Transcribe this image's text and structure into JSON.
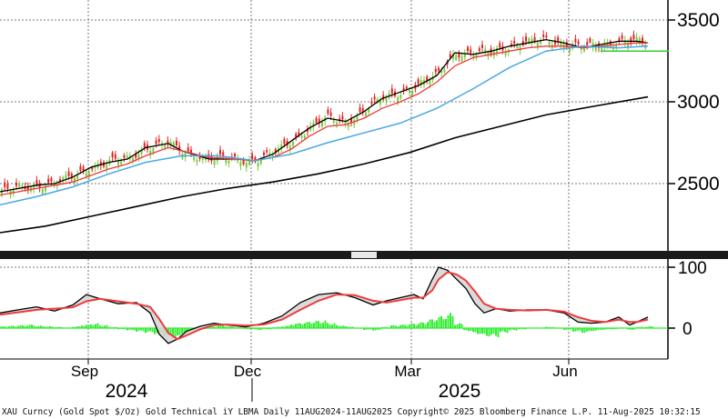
{
  "chart_data": [
    {
      "type": "line",
      "panel": "price",
      "title": "",
      "y_ticks": [
        "3500",
        "3000",
        "2500"
      ],
      "ylim": [
        2180,
        3560
      ],
      "grid": true,
      "colors": {
        "candle_up": "#7ac943",
        "candle_down": "#e02424",
        "ma_fast": "#000000",
        "ma_mid": "#ee3b3b",
        "ma_slow": "#4aa8e8",
        "ma_long": "#000000",
        "hline": "#33cc33"
      },
      "series": [
        {
          "key": "ma_fast",
          "x": [
            0,
            20,
            40,
            60,
            80,
            100,
            120,
            140,
            160,
            185,
            200,
            230,
            260,
            280,
            300,
            320,
            340,
            360,
            380,
            400,
            420,
            440,
            460,
            480,
            500,
            520,
            540,
            560,
            580,
            600,
            620,
            640,
            660,
            680,
            700,
            712
          ],
          "values": [
            2450,
            2470,
            2490,
            2500,
            2540,
            2600,
            2630,
            2650,
            2720,
            2745,
            2700,
            2650,
            2650,
            2640,
            2680,
            2760,
            2840,
            2900,
            2880,
            2940,
            3020,
            3060,
            3100,
            3160,
            3300,
            3290,
            3310,
            3340,
            3360,
            3380,
            3360,
            3330,
            3350,
            3370,
            3370,
            3360
          ]
        },
        {
          "key": "ma_mid",
          "x": [
            0,
            20,
            40,
            60,
            80,
            100,
            120,
            140,
            160,
            185,
            200,
            230,
            260,
            280,
            300,
            320,
            340,
            360,
            380,
            400,
            420,
            440,
            460,
            480,
            500,
            520,
            540,
            560,
            580,
            600,
            620,
            640,
            660,
            680,
            700,
            712
          ],
          "values": [
            2430,
            2450,
            2470,
            2490,
            2510,
            2550,
            2590,
            2620,
            2670,
            2720,
            2700,
            2660,
            2650,
            2640,
            2660,
            2710,
            2790,
            2850,
            2860,
            2900,
            2960,
            3000,
            3050,
            3120,
            3220,
            3270,
            3290,
            3310,
            3330,
            3340,
            3340,
            3330,
            3340,
            3350,
            3360,
            3360
          ]
        },
        {
          "key": "ma_slow",
          "x": [
            0,
            40,
            80,
            120,
            160,
            200,
            240,
            280,
            320,
            360,
            400,
            440,
            480,
            520,
            560,
            600,
            640,
            680,
            712
          ],
          "values": [
            2370,
            2420,
            2480,
            2560,
            2630,
            2670,
            2670,
            2640,
            2680,
            2750,
            2810,
            2870,
            2960,
            3080,
            3210,
            3310,
            3340,
            3330,
            3340
          ]
        },
        {
          "key": "ma_long",
          "x": [
            0,
            50,
            100,
            150,
            200,
            250,
            300,
            350,
            400,
            450,
            500,
            550,
            600,
            650,
            712
          ],
          "values": [
            2200,
            2240,
            2300,
            2360,
            2420,
            2470,
            2510,
            2560,
            2620,
            2690,
            2780,
            2850,
            2920,
            2970,
            3030
          ]
        }
      ],
      "hline": 3310,
      "hline_x": [
        660,
        735
      ]
    },
    {
      "type": "line",
      "panel": "oscillator",
      "y_ticks": [
        "100",
        "0"
      ],
      "ylim": [
        -30,
        110
      ],
      "colors": {
        "main": "#000000",
        "signal": "#ee3b3b",
        "fill": "#d7d7d7",
        "hist": "#33ee33"
      },
      "series": [
        {
          "key": "main",
          "x": [
            0,
            20,
            40,
            60,
            80,
            95,
            110,
            130,
            150,
            165,
            175,
            185,
            195,
            205,
            220,
            235,
            250,
            270,
            290,
            310,
            330,
            350,
            370,
            390,
            410,
            425,
            440,
            455,
            465,
            475,
            482,
            492,
            502,
            512,
            522,
            532,
            545,
            560,
            580,
            600,
            620,
            635,
            650,
            665,
            680,
            692,
            700,
            712
          ],
          "values": [
            25,
            30,
            35,
            28,
            38,
            55,
            48,
            40,
            42,
            25,
            -10,
            -25,
            -18,
            -5,
            3,
            8,
            5,
            2,
            8,
            20,
            42,
            55,
            58,
            50,
            38,
            45,
            50,
            55,
            48,
            80,
            100,
            95,
            80,
            65,
            40,
            25,
            32,
            28,
            30,
            30,
            25,
            10,
            8,
            10,
            18,
            5,
            10,
            18
          ]
        },
        {
          "key": "signal",
          "x": [
            0,
            20,
            40,
            60,
            80,
            95,
            110,
            130,
            150,
            165,
            175,
            185,
            195,
            205,
            220,
            235,
            250,
            270,
            290,
            310,
            330,
            350,
            370,
            390,
            410,
            425,
            440,
            455,
            465,
            475,
            482,
            492,
            502,
            512,
            522,
            532,
            545,
            560,
            580,
            600,
            620,
            635,
            650,
            665,
            680,
            692,
            700,
            712
          ],
          "values": [
            22,
            26,
            30,
            32,
            34,
            44,
            48,
            44,
            40,
            35,
            15,
            -8,
            -18,
            -12,
            -2,
            5,
            6,
            4,
            6,
            14,
            30,
            45,
            55,
            54,
            45,
            42,
            46,
            50,
            50,
            62,
            80,
            92,
            88,
            78,
            60,
            40,
            32,
            30,
            29,
            30,
            27,
            18,
            12,
            10,
            14,
            10,
            10,
            14
          ]
        }
      ],
      "histogram": {
        "x": [
          0,
          10,
          20,
          30,
          40,
          50,
          60,
          70,
          80,
          90,
          100,
          110,
          120,
          130,
          140,
          150,
          160,
          170,
          180,
          190,
          200,
          210,
          220,
          230,
          240,
          250,
          260,
          270,
          280,
          290,
          300,
          310,
          320,
          330,
          340,
          350,
          360,
          370,
          380,
          390,
          400,
          410,
          420,
          430,
          440,
          450,
          460,
          470,
          480,
          490,
          500,
          510,
          520,
          530,
          540,
          550,
          560,
          570,
          580,
          590,
          600,
          610,
          620,
          630,
          640,
          650,
          660,
          670,
          680,
          690,
          700,
          710
        ],
        "values": [
          3,
          4,
          5,
          6,
          4,
          3,
          2,
          1,
          3,
          6,
          8,
          5,
          2,
          -2,
          -4,
          -6,
          -8,
          -10,
          -15,
          -18,
          -10,
          -4,
          -2,
          3,
          5,
          3,
          1,
          -2,
          -3,
          -2,
          2,
          4,
          8,
          10,
          12,
          13,
          9,
          5,
          3,
          1,
          -3,
          -4,
          2,
          5,
          6,
          8,
          10,
          15,
          20,
          25,
          8,
          -5,
          -10,
          -14,
          -15,
          -8,
          -4,
          -2,
          0,
          1,
          2,
          0,
          -3,
          -6,
          -8,
          -5,
          -3,
          -2,
          1,
          -3,
          2,
          3
        ]
      },
      "hline": 0
    }
  ],
  "x_axis": {
    "months": [
      "Sep",
      "Dec",
      "Mar",
      "Jun"
    ],
    "years": [
      "2024",
      "2025"
    ]
  },
  "footer": "XAU Curncy (Gold Spot  $/Oz) Gold Technical iY LBMA  Daily 11AUG2024-11AUG2025  Copyright© 2025 Bloomberg Finance L.P.  11-Aug-2025 10:32:15"
}
